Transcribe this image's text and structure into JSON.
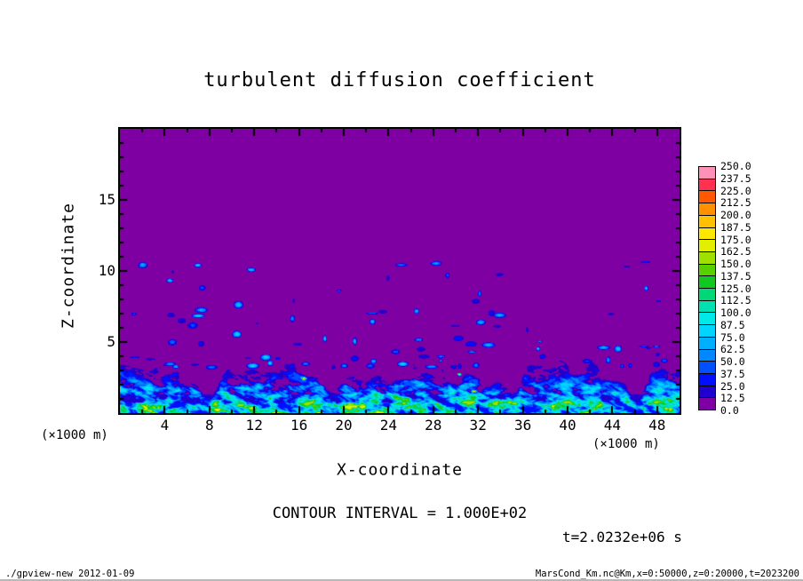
{
  "title": "turbulent diffusion coefficient",
  "axes": {
    "x": {
      "label": "X-coordinate",
      "unit": "(×1000 m)",
      "min": 0,
      "max": 50,
      "ticks": [
        4,
        8,
        12,
        16,
        20,
        24,
        28,
        32,
        36,
        40,
        44,
        48
      ]
    },
    "z": {
      "label": "Z-coordinate",
      "unit": "(×1000 m)",
      "min": 0,
      "max": 20,
      "ticks": [
        5,
        10,
        15
      ]
    }
  },
  "colorbar": {
    "labels": [
      "250.0",
      "237.5",
      "225.0",
      "212.5",
      "200.0",
      "187.5",
      "175.0",
      "162.5",
      "150.0",
      "137.5",
      "125.0",
      "112.5",
      "100.0",
      "87.5",
      "75.0",
      "62.5",
      "50.0",
      "37.5",
      "25.0",
      "12.5",
      "0.0"
    ]
  },
  "annotations": {
    "contour_interval": "CONTOUR INTERVAL = 1.000E+02",
    "time": "t=2.0232e+06 s"
  },
  "footer": {
    "left": "./gpview-new  2012-01-09",
    "right": "MarsCond_Km.nc@Km,x=0:50000,z=0:20000,t=2023200"
  },
  "chart_data": {
    "type": "heatmap",
    "title": "turbulent diffusion coefficient",
    "xlabel": "X-coordinate (×1000 m)",
    "ylabel": "Z-coordinate (×1000 m)",
    "x_range": [
      0,
      50
    ],
    "z_range": [
      0,
      20
    ],
    "x_ticks": [
      4,
      8,
      12,
      16,
      20,
      24,
      28,
      32,
      36,
      40,
      44,
      48
    ],
    "z_ticks": [
      5,
      10,
      15
    ],
    "contour_interval": 100,
    "time_seconds": 2023200,
    "levels": [
      0,
      12.5,
      25,
      37.5,
      50,
      62.5,
      75,
      87.5,
      100,
      112.5,
      125,
      137.5,
      150,
      162.5,
      175,
      187.5,
      200,
      212.5,
      225,
      237.5,
      250
    ],
    "palette": [
      "#7e00a3",
      "#2000cf",
      "#0010ff",
      "#0050ff",
      "#0088ff",
      "#00b0ff",
      "#00d4ff",
      "#00e8e8",
      "#00e0b0",
      "#00d878",
      "#10c820",
      "#58d000",
      "#a0e000",
      "#e0f000",
      "#ffe800",
      "#ffc000",
      "#ff9000",
      "#ff5800",
      "#ff3050",
      "#ff90b8"
    ],
    "field_summary": {
      "background": "value in lowest band 0.0-12.5 (purple) over most of the domain above ~4-5 km",
      "boundary_layer": "turbulent band below ~2-4 km with values ~25-150 (dark blue to cyan plumes and filaments, rare small green/yellow spots near x=16 and x=30-32)",
      "detached_patches": "small isolated dark-blue patches of ~12.5-75 scattered between ~3 and 11 km, including one near x=28, z=10.5"
    }
  }
}
